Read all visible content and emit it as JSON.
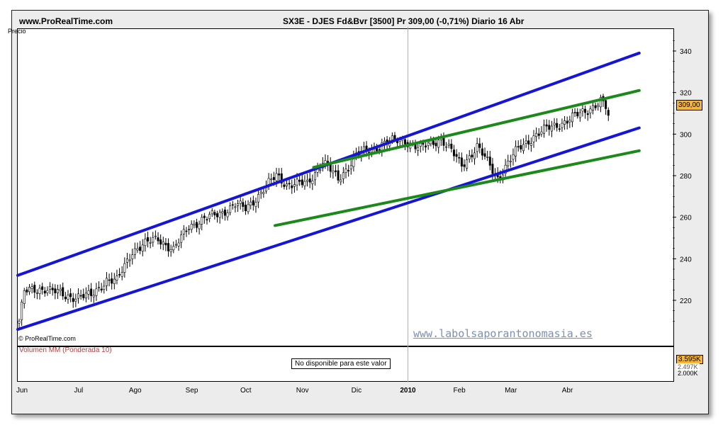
{
  "header": {
    "site": "www.ProRealTime.com",
    "title": "SX3E - DJES Fd&Bvr [3500] Pr    309,00 (-0,71%)   Diario  16 Abr"
  },
  "price_panel": {
    "label": "Precio",
    "copyright": "© ProRealTime.com",
    "watermark": "www.labolsaporantonomasia.es",
    "last_price_tag": "309,00"
  },
  "volume_panel": {
    "label": "Volumen MM (Ponderada 10)",
    "message": "No disponible para este valor",
    "tag_value": "3.595K",
    "tag_secondary": "2.497K",
    "axis_value": "2.000K"
  },
  "colors": {
    "channel_lines": "#1515d8",
    "triangle_lines": "#1b8a1b",
    "price_tag": "#f5b53a"
  },
  "chart_data": {
    "type": "candlestick",
    "y_ticks": [
      220,
      240,
      260,
      280,
      300,
      320,
      340
    ],
    "ylim": [
      205,
      350
    ],
    "x_labels": [
      "Jun",
      "Jul",
      "Ago",
      "Sep",
      "Oct",
      "Nov",
      "Dic",
      "2010",
      "Feb",
      "Mar",
      "Abr"
    ],
    "x_label_index": [
      0,
      22,
      44,
      66,
      87,
      109,
      130,
      150,
      170,
      190,
      212
    ],
    "bars": 230,
    "last_close": 309,
    "waypoints": [
      [
        0,
        210
      ],
      [
        2,
        224
      ],
      [
        10,
        226
      ],
      [
        18,
        222
      ],
      [
        28,
        222
      ],
      [
        34,
        230
      ],
      [
        38,
        229
      ],
      [
        44,
        244
      ],
      [
        54,
        250
      ],
      [
        60,
        244
      ],
      [
        66,
        256
      ],
      [
        78,
        262
      ],
      [
        84,
        266
      ],
      [
        88,
        264
      ],
      [
        100,
        280
      ],
      [
        104,
        276
      ],
      [
        112,
        276
      ],
      [
        118,
        287
      ],
      [
        124,
        278
      ],
      [
        131,
        290
      ],
      [
        136,
        292
      ],
      [
        142,
        296
      ],
      [
        150,
        297
      ],
      [
        156,
        293
      ],
      [
        164,
        298
      ],
      [
        172,
        285
      ],
      [
        178,
        294
      ],
      [
        186,
        279
      ],
      [
        194,
        293
      ],
      [
        200,
        299
      ],
      [
        206,
        303
      ],
      [
        212,
        306
      ],
      [
        220,
        311
      ],
      [
        226,
        316
      ],
      [
        230,
        309
      ]
    ],
    "trend_lines": [
      {
        "name": "channel-upper",
        "from": [
          0,
          232
        ],
        "to": [
          241,
          339
        ]
      },
      {
        "name": "channel-lower",
        "from": [
          0,
          206
        ],
        "to": [
          241,
          303
        ]
      },
      {
        "name": "triangle-upper",
        "from": [
          115,
          284
        ],
        "to": [
          241,
          321
        ]
      },
      {
        "name": "triangle-lower",
        "from": [
          100,
          256
        ],
        "to": [
          241,
          292
        ]
      }
    ]
  }
}
